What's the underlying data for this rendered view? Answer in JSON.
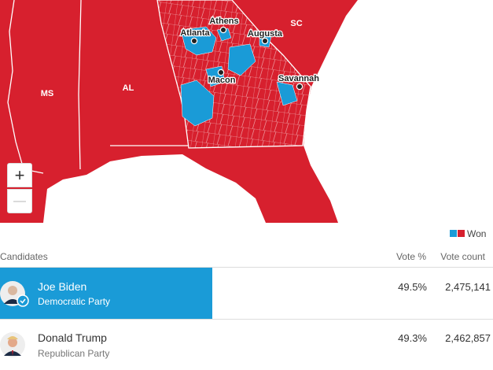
{
  "map": {
    "state_labels": [
      "MS",
      "AL",
      "SC"
    ],
    "city_labels": [
      "Athens",
      "Atlanta",
      "Augusta",
      "Macon",
      "Savannah"
    ],
    "zoom_in": "+",
    "zoom_out": "—"
  },
  "legend": {
    "label": "Won"
  },
  "table": {
    "columns": [
      "Candidates",
      "Vote %",
      "Vote count"
    ],
    "rows": [
      {
        "name": "Joe Biden",
        "party": "Democratic Party",
        "vote_pct": "49.5%",
        "vote_count": "2,475,141"
      },
      {
        "name": "Donald Trump",
        "party": "Republican Party",
        "vote_pct": "49.3%",
        "vote_count": "2,462,857"
      }
    ]
  }
}
